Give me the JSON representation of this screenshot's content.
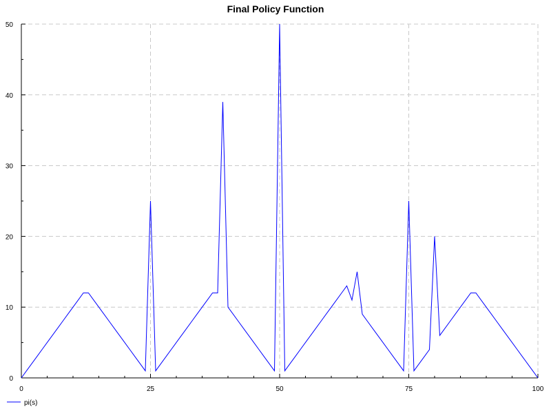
{
  "chart_data": {
    "type": "line",
    "title": "Final Policy Function",
    "xlabel": "",
    "ylabel": "",
    "xlim": [
      0,
      100
    ],
    "ylim": [
      0,
      50
    ],
    "x_major_ticks": [
      0,
      25,
      50,
      75,
      100
    ],
    "x_minor_ticks": [
      5,
      10,
      15,
      20,
      30,
      35,
      40,
      45,
      55,
      60,
      65,
      70,
      80,
      85,
      90,
      95
    ],
    "y_major_ticks": [
      0,
      10,
      20,
      30,
      40,
      50
    ],
    "y_minor_ticks": [
      5,
      15,
      25,
      35,
      45
    ],
    "grid": true,
    "legend_position": "bottom-left",
    "colors": {
      "series": "#0000ff",
      "grid": "#c8c8c8",
      "axis": "#000000"
    },
    "series": [
      {
        "name": "pi(s)",
        "x": [
          0,
          1,
          2,
          3,
          4,
          5,
          6,
          7,
          8,
          9,
          10,
          11,
          12,
          13,
          14,
          15,
          16,
          17,
          18,
          19,
          20,
          21,
          22,
          23,
          24,
          25,
          26,
          27,
          28,
          29,
          30,
          31,
          32,
          33,
          34,
          35,
          36,
          37,
          38,
          39,
          40,
          41,
          42,
          43,
          44,
          45,
          46,
          47,
          48,
          49,
          50,
          51,
          52,
          53,
          54,
          55,
          56,
          57,
          58,
          59,
          60,
          61,
          62,
          63,
          64,
          65,
          66,
          67,
          68,
          69,
          70,
          71,
          72,
          73,
          74,
          75,
          76,
          77,
          78,
          79,
          80,
          81,
          82,
          83,
          84,
          85,
          86,
          87,
          88,
          89,
          90,
          91,
          92,
          93,
          94,
          95,
          96,
          97,
          98,
          99,
          100
        ],
        "y": [
          0,
          1,
          2,
          3,
          4,
          5,
          6,
          7,
          8,
          9,
          10,
          11,
          12,
          12,
          11,
          10,
          9,
          8,
          7,
          6,
          5,
          4,
          3,
          2,
          1,
          25,
          1,
          2,
          3,
          4,
          5,
          6,
          7,
          8,
          9,
          10,
          11,
          12,
          12,
          39,
          10,
          9,
          8,
          7,
          6,
          5,
          4,
          3,
          2,
          1,
          50,
          1,
          2,
          3,
          4,
          5,
          6,
          7,
          8,
          9,
          10,
          11,
          12,
          13,
          11,
          15,
          9,
          8,
          7,
          6,
          5,
          4,
          3,
          2,
          1,
          25,
          1,
          2,
          3,
          4,
          20,
          6,
          7,
          8,
          9,
          10,
          11,
          12,
          12,
          11,
          10,
          9,
          8,
          7,
          6,
          5,
          4,
          3,
          2,
          1,
          0
        ]
      }
    ]
  }
}
